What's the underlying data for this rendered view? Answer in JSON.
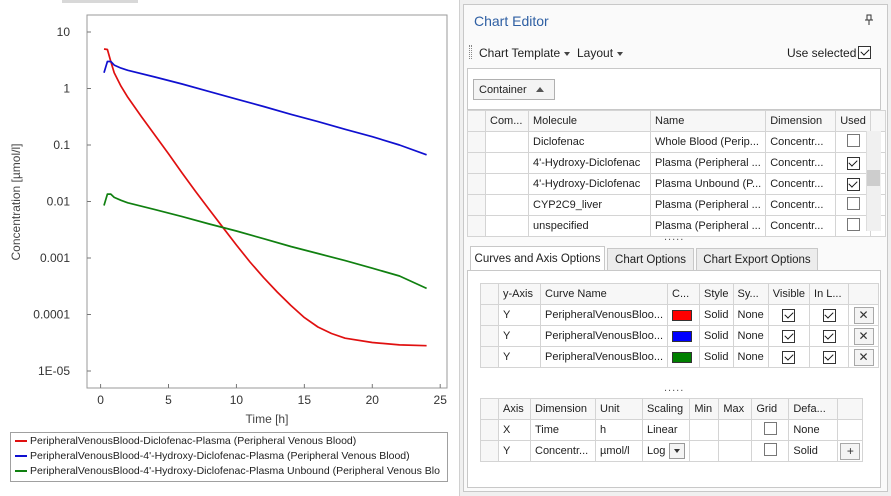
{
  "chart": {
    "y_label": "Concentration [µmol/l]",
    "x_label": "Time [h]",
    "y_ticks": [
      "10",
      "1",
      "0.1",
      "0.01",
      "0.001",
      "0.0001",
      "1E-05"
    ],
    "x_ticks": [
      "0",
      "5",
      "10",
      "15",
      "20",
      "25"
    ]
  },
  "chart_data": {
    "type": "line",
    "xlabel": "Time [h]",
    "ylabel": "Concentration [µmol/l]",
    "xlim": [
      -1,
      25.5
    ],
    "ylim": [
      5e-06,
      20
    ],
    "y_scale": "log",
    "grid": false,
    "legend_position": "bottom",
    "series": [
      {
        "name": "PeripheralVenousBlood-Diclofenac-Plasma (Peripheral Venous Blood)",
        "color": "#e01010",
        "x": [
          0.25,
          0.5,
          0.75,
          1,
          1.5,
          2,
          3,
          4,
          5,
          6,
          7,
          8,
          9,
          10,
          11,
          12,
          13,
          14,
          15,
          16,
          17,
          18,
          20,
          22,
          24
        ],
        "y": [
          5.0,
          4.9,
          3.0,
          1.9,
          1.1,
          0.7,
          0.32,
          0.15,
          0.07,
          0.032,
          0.015,
          0.0072,
          0.0035,
          0.0017,
          0.00085,
          0.00045,
          0.00025,
          0.000145,
          8.8e-05,
          6e-05,
          4.6e-05,
          3.8e-05,
          3.2e-05,
          2.9e-05,
          2.8e-05
        ]
      },
      {
        "name": "PeripheralVenousBlood-4'-Hydroxy-Diclofenac-Plasma (Peripheral Venous Blood)",
        "color": "#1010d0",
        "x": [
          0.25,
          0.5,
          0.75,
          1,
          1.5,
          2,
          4,
          6,
          8,
          10,
          12,
          14,
          16,
          18,
          20,
          22,
          24
        ],
        "y": [
          1.9,
          3.0,
          3.0,
          2.6,
          2.3,
          2.1,
          1.6,
          1.2,
          0.88,
          0.65,
          0.48,
          0.35,
          0.26,
          0.19,
          0.14,
          0.1,
          0.067
        ]
      },
      {
        "name": "PeripheralVenousBlood-4'-Hydroxy-Diclofenac-Plasma Unbound (Peripheral Venous Blood)",
        "color": "#108010",
        "x": [
          0.25,
          0.5,
          0.75,
          1,
          1.5,
          2,
          4,
          6,
          8,
          10,
          12,
          14,
          16,
          18,
          20,
          22,
          24
        ],
        "y": [
          0.0085,
          0.0135,
          0.0135,
          0.0118,
          0.0105,
          0.0095,
          0.0072,
          0.0054,
          0.004,
          0.003,
          0.0022,
          0.0016,
          0.0012,
          0.0009,
          0.00066,
          0.00048,
          0.00029
        ]
      }
    ]
  },
  "legend": [
    {
      "label": "PeripheralVenousBlood-Diclofenac-Plasma (Peripheral Venous Blood)",
      "color": "#e01010"
    },
    {
      "label": "PeripheralVenousBlood-4'-Hydroxy-Diclofenac-Plasma (Peripheral Venous Blood)",
      "color": "#1010d0"
    },
    {
      "label": "PeripheralVenousBlood-4'-Hydroxy-Diclofenac-Plasma Unbound (Peripheral Venous Blo",
      "color": "#108010"
    }
  ],
  "editor": {
    "title": "Chart Editor",
    "chart_template": "Chart Template",
    "layout": "Layout",
    "use_selected": "Use selected",
    "container_button": "Container",
    "dots": "....."
  },
  "molecule_grid": {
    "headers": [
      "Com...",
      "Molecule",
      "Name",
      "Dimension",
      "Used"
    ],
    "rows": [
      {
        "molecule": "Diclofenac",
        "name": "Whole Blood (Perip...",
        "dimension": "Concentr...",
        "used": false
      },
      {
        "molecule": "4'-Hydroxy-Diclofenac",
        "name": "Plasma (Peripheral ...",
        "dimension": "Concentr...",
        "used": true
      },
      {
        "molecule": "4'-Hydroxy-Diclofenac",
        "name": "Plasma Unbound (P...",
        "dimension": "Concentr...",
        "used": true
      },
      {
        "molecule": "CYP2C9_liver",
        "name": "Plasma (Peripheral ...",
        "dimension": "Concentr...",
        "used": false
      },
      {
        "molecule": "unspecified",
        "name": "Plasma (Peripheral ...",
        "dimension": "Concentr...",
        "used": false
      }
    ]
  },
  "tabs": [
    "Curves and Axis Options",
    "Chart Options",
    "Chart Export Options"
  ],
  "curves_grid": {
    "headers": [
      "y-Axis",
      "Curve Name",
      "C...",
      "Style",
      "Sy...",
      "Visible",
      "In L..."
    ],
    "rows": [
      {
        "axis": "Y",
        "name": "PeripheralVenousBloo...",
        "color": "#ff0000",
        "style": "Solid",
        "symbol": "None",
        "visible": true,
        "in_legend": true
      },
      {
        "axis": "Y",
        "name": "PeripheralVenousBloo...",
        "color": "#0000ff",
        "style": "Solid",
        "symbol": "None",
        "visible": true,
        "in_legend": true
      },
      {
        "axis": "Y",
        "name": "PeripheralVenousBloo...",
        "color": "#008000",
        "style": "Solid",
        "symbol": "None",
        "visible": true,
        "in_legend": true
      }
    ],
    "delete_glyph": "✕"
  },
  "axis_grid": {
    "headers": [
      "Axis",
      "Dimension",
      "Unit",
      "Scaling",
      "Min",
      "Max",
      "Grid",
      "Defa..."
    ],
    "rows": [
      {
        "axis": "X",
        "dimension": "Time",
        "unit": "h",
        "scaling": "Linear",
        "min": "",
        "max": "",
        "grid": false,
        "default": "None"
      },
      {
        "axis": "Y",
        "dimension": "Concentr...",
        "unit": "µmol/l",
        "scaling": "Log",
        "min": "",
        "max": "",
        "grid": false,
        "default": "Solid"
      }
    ],
    "add_glyph": "+"
  }
}
